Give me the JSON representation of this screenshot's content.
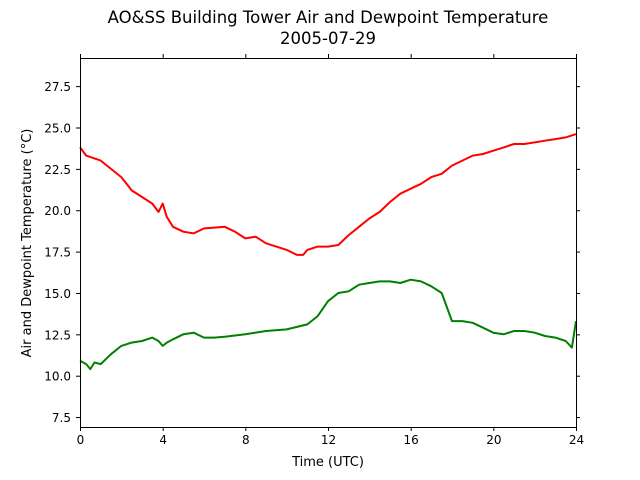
{
  "chart_data": {
    "type": "line",
    "title": "AO&SS Building Tower Air and Dewpoint Temperature",
    "subtitle": "2005-07-29",
    "xlabel": "Time (UTC)",
    "ylabel": "Air and Dewpoint Temperature (°C)",
    "xlim": [
      0,
      24
    ],
    "ylim": [
      6.9,
      29.2
    ],
    "xticks": [
      0,
      4,
      8,
      12,
      16,
      20,
      24
    ],
    "yticks": [
      7.5,
      10.0,
      12.5,
      15.0,
      17.5,
      20.0,
      22.5,
      25.0,
      27.5
    ],
    "grid": false,
    "legend": "none",
    "series": [
      {
        "color": "#ff0000",
        "x": [
          0,
          0.3,
          1,
          1.5,
          2,
          2.5,
          3,
          3.5,
          3.8,
          4.0,
          4.2,
          4.5,
          5,
          5.5,
          6,
          6.5,
          7,
          7.5,
          8,
          8.5,
          9,
          9.5,
          10,
          10.5,
          10.8,
          11,
          11.5,
          12,
          12.5,
          13,
          13.5,
          14,
          14.5,
          15,
          15.5,
          16,
          16.5,
          17,
          17.5,
          18,
          18.5,
          19,
          19.5,
          20,
          20.5,
          21,
          21.5,
          22,
          22.5,
          23,
          23.5,
          24
        ],
        "values": [
          23.8,
          23.3,
          23.0,
          22.5,
          22.0,
          21.2,
          20.8,
          20.4,
          19.9,
          20.4,
          19.6,
          19.0,
          18.7,
          18.6,
          18.9,
          18.95,
          19.0,
          18.7,
          18.3,
          18.4,
          18.0,
          17.8,
          17.6,
          17.3,
          17.3,
          17.6,
          17.8,
          17.8,
          17.9,
          18.5,
          19.0,
          19.5,
          19.9,
          20.5,
          21.0,
          21.3,
          21.6,
          22.0,
          22.2,
          22.7,
          23.0,
          23.3,
          23.4,
          23.6,
          23.8,
          24.0,
          24.0,
          24.1,
          24.2,
          24.3,
          24.4,
          24.6
        ]
      },
      {
        "color": "#008000",
        "x": [
          0,
          0.3,
          0.5,
          0.7,
          1,
          1.5,
          2,
          2.5,
          3,
          3.5,
          3.8,
          4.0,
          4.2,
          4.5,
          5,
          5.5,
          6,
          6.5,
          7,
          8,
          9,
          10,
          11,
          11.5,
          12,
          12.5,
          13,
          13.5,
          14,
          14.5,
          15,
          15.5,
          16,
          16.5,
          17,
          17.5,
          18,
          18.5,
          19,
          19.5,
          20,
          20.5,
          21,
          21.5,
          22,
          22.5,
          23,
          23.5,
          23.8,
          24
        ],
        "values": [
          10.9,
          10.7,
          10.4,
          10.8,
          10.7,
          11.3,
          11.8,
          12.0,
          12.1,
          12.3,
          12.1,
          11.8,
          12.0,
          12.2,
          12.5,
          12.6,
          12.3,
          12.3,
          12.35,
          12.5,
          12.7,
          12.8,
          13.1,
          13.6,
          14.5,
          15.0,
          15.1,
          15.5,
          15.6,
          15.7,
          15.7,
          15.6,
          15.8,
          15.7,
          15.4,
          15.0,
          13.3,
          13.3,
          13.2,
          12.9,
          12.6,
          12.5,
          12.7,
          12.7,
          12.6,
          12.4,
          12.3,
          12.1,
          11.7,
          13.3
        ]
      }
    ]
  }
}
